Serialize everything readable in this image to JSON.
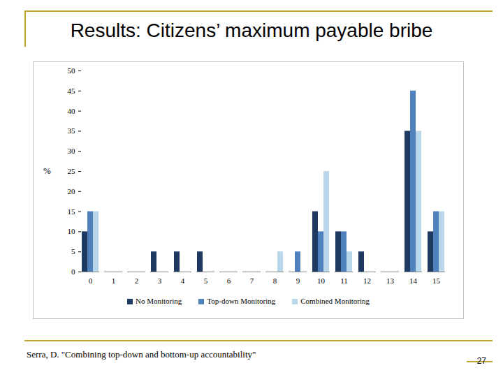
{
  "chart_data": {
    "type": "bar",
    "title": "Results: Citizens’ maximum payable bribe",
    "annotations": [
      "Serra, D. \"Combining top-down and bottom-up accountability\"",
      "27"
    ],
    "y_label": "%",
    "categories": [
      0,
      1,
      2,
      3,
      4,
      5,
      6,
      7,
      8,
      9,
      10,
      11,
      12,
      13,
      14,
      15
    ],
    "series": [
      {
        "name": "No Monitoring",
        "color": "#1f3a60",
        "values": [
          10,
          0,
          0,
          5,
          5,
          5,
          0,
          0,
          0,
          0,
          15,
          10,
          5,
          0,
          35,
          10
        ]
      },
      {
        "name": "Top-down Monitoring",
        "color": "#4f81bd",
        "values": [
          15,
          0,
          0,
          0,
          0,
          0,
          0,
          0,
          0,
          5,
          10,
          10,
          0,
          0,
          45,
          15
        ]
      },
      {
        "name": "Combined Monitoring",
        "color": "#b9d6ea",
        "values": [
          15,
          0,
          0,
          0,
          0,
          0,
          0,
          0,
          5,
          0,
          25,
          5,
          0,
          0,
          35,
          15
        ]
      }
    ],
    "ylim": [
      0,
      50
    ],
    "yticks": [
      0,
      5,
      10,
      15,
      20,
      25,
      30,
      35,
      40,
      45,
      50
    ],
    "legend": "bottom",
    "grid": false
  }
}
